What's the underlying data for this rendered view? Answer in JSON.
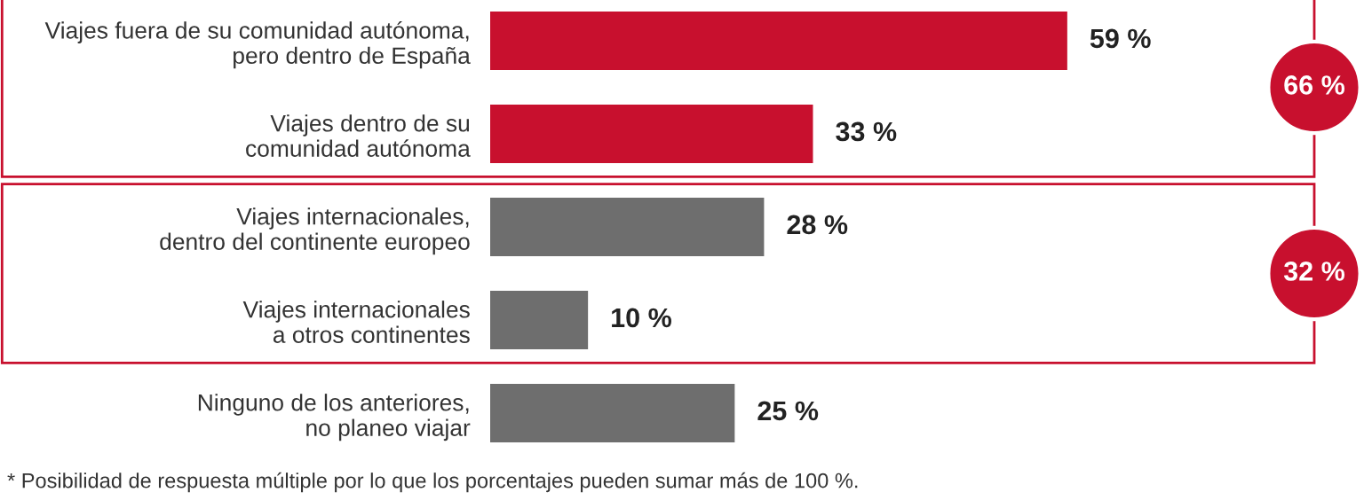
{
  "chart_data": {
    "type": "bar",
    "orientation": "horizontal",
    "categories": [
      "Viajes fuera de su comunidad autónoma,\npero dentro de España",
      "Viajes dentro de su\ncomunidad autónoma",
      "Viajes internacionales,\ndentro del continente europeo",
      "Viajes internacionales\na otros continentes",
      "Ninguno de los anteriores,\nno planeo viajar"
    ],
    "values": [
      59,
      33,
      28,
      10,
      25
    ],
    "colors": [
      "#c8102e",
      "#c8102e",
      "#6e6e6e",
      "#6e6e6e",
      "#6e6e6e"
    ],
    "value_labels": [
      "59 %",
      "33 %",
      "28 %",
      "10 %",
      "25 %"
    ],
    "annotations": [
      "66 %",
      "32 %",
      "* Posibilidad de respuesta múltiple por lo que los porcentajes pueden sumar más de 100 %."
    ],
    "grid": false,
    "legend": false
  }
}
